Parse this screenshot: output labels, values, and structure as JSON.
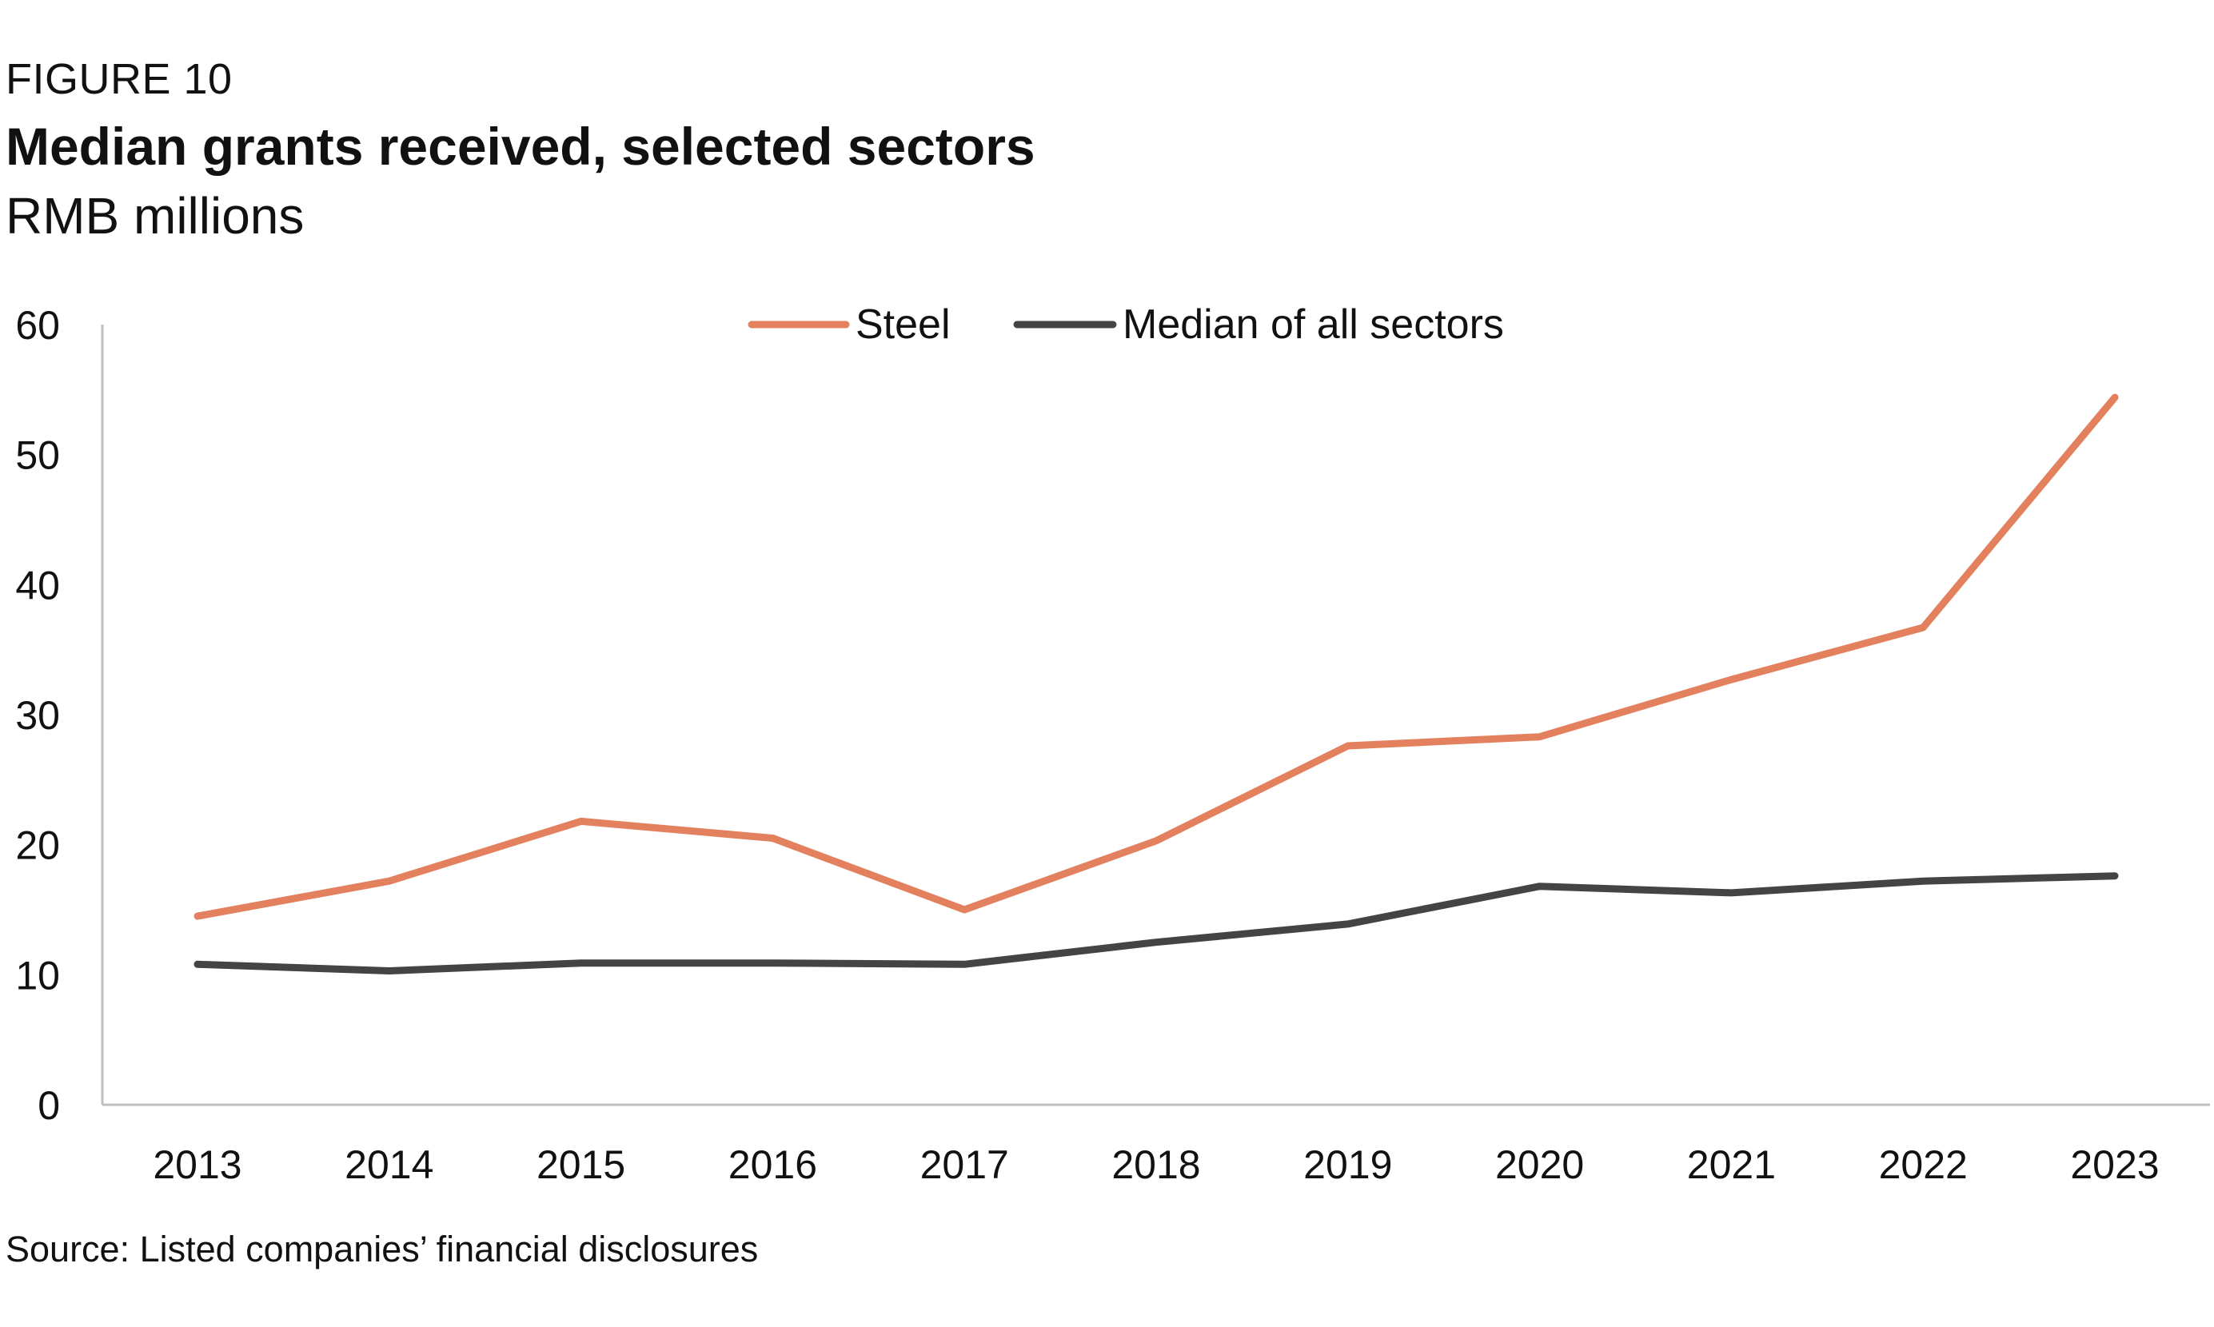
{
  "figure": {
    "label": "FIGURE 10",
    "title": "Median grants received, selected sectors",
    "subtitle": "RMB millions",
    "source": "Source: Listed companies’ financial disclosures"
  },
  "colors": {
    "steel": "#E3805E",
    "median": "#444444",
    "axis": "#BFBFBF"
  },
  "chart_data": {
    "type": "line",
    "x": [
      "2013",
      "2014",
      "2015",
      "2016",
      "2017",
      "2018",
      "2019",
      "2020",
      "2021",
      "2022",
      "2023"
    ],
    "series": [
      {
        "name": "Steel",
        "values": [
          14.5,
          17.2,
          21.8,
          20.5,
          15.0,
          20.3,
          27.6,
          28.3,
          32.7,
          36.7,
          54.4
        ]
      },
      {
        "name": "Median of all sectors",
        "values": [
          10.8,
          10.3,
          10.9,
          10.9,
          10.8,
          12.5,
          13.9,
          16.8,
          16.3,
          17.2,
          17.6
        ]
      }
    ],
    "ylim": [
      0,
      60
    ],
    "yticks": [
      "0",
      "10",
      "20",
      "30",
      "40",
      "50",
      "60"
    ],
    "xlabel": "",
    "ylabel": "",
    "grid": false,
    "legend_position": "top-center"
  }
}
